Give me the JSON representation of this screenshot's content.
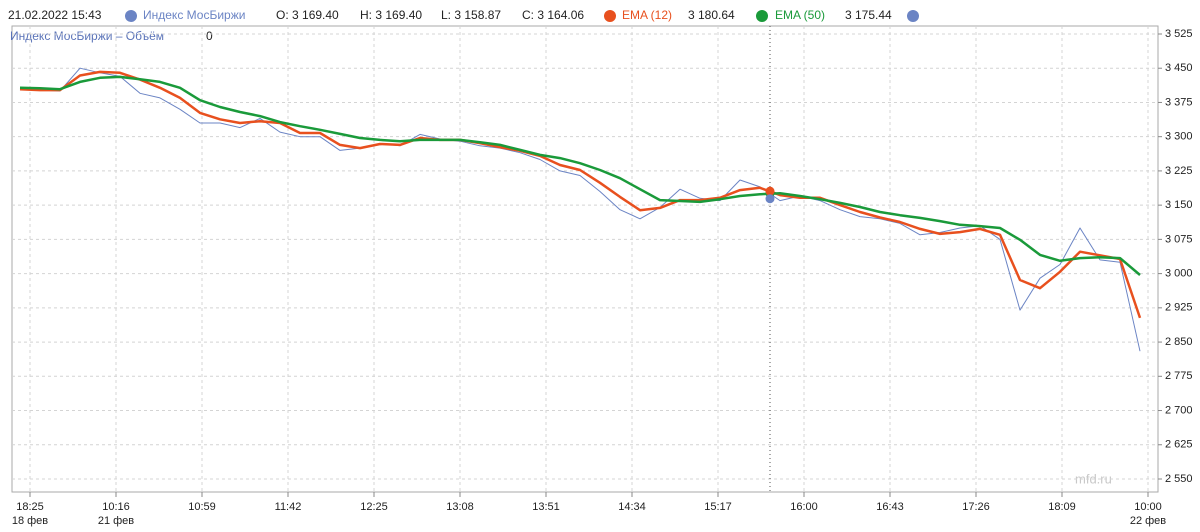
{
  "chart_data": {
    "type": "line",
    "timestamp": "21.02.2022 15:43",
    "volume_legend": {
      "name": "Индекс МосБиржи – Объём",
      "value": 0
    },
    "watermark": "mfd.ru",
    "cursor_x": 370,
    "x": [
      -5,
      5,
      15,
      25,
      35,
      45,
      55,
      65,
      75,
      85,
      95,
      105,
      115,
      125,
      135,
      145,
      155,
      165,
      175,
      185,
      195,
      205,
      215,
      225,
      235,
      245,
      255,
      265,
      275,
      285,
      295,
      305,
      315,
      325,
      335,
      345,
      355,
      365,
      375,
      385,
      395,
      405,
      415,
      425,
      435,
      445,
      455,
      465,
      475,
      485,
      495,
      505,
      515,
      525,
      535,
      545,
      555
    ],
    "series": [
      {
        "name": "Индекс МосБиржи",
        "color": "#6b84c4",
        "width": 1,
        "readout": [
          {
            "prefix": "O:",
            "value": 3169.4,
            "label": "3 169.40"
          },
          {
            "prefix": "H:",
            "value": 3169.4,
            "label": "3 169.40"
          },
          {
            "prefix": "L:",
            "value": 3158.87,
            "label": "3 158.87"
          },
          {
            "prefix": "C:",
            "value": 3164.06,
            "label": "3 164.06"
          }
        ],
        "values": [
          3404,
          3402,
          3400,
          3450,
          3440,
          3432,
          3395,
          3385,
          3360,
          3330,
          3330,
          3320,
          3340,
          3310,
          3300,
          3300,
          3270,
          3275,
          3285,
          3280,
          3305,
          3295,
          3290,
          3280,
          3275,
          3265,
          3250,
          3225,
          3215,
          3180,
          3140,
          3120,
          3145,
          3185,
          3165,
          3160,
          3205,
          3190,
          3160,
          3170,
          3160,
          3140,
          3125,
          3120,
          3110,
          3085,
          3090,
          3100,
          3105,
          3075,
          2920,
          2990,
          3020,
          3100,
          3030,
          3025,
          2830
        ]
      },
      {
        "name": "EMA (12)",
        "color": "#e8501e",
        "width": 2.5,
        "readout": [
          {
            "value": 3180.64,
            "label": "3 180.64"
          }
        ],
        "values": [
          3404,
          3402,
          3402,
          3434,
          3442,
          3440,
          3425,
          3407,
          3385,
          3352,
          3338,
          3330,
          3334,
          3330,
          3308,
          3308,
          3282,
          3275,
          3284,
          3282,
          3297,
          3293,
          3293,
          3286,
          3277,
          3269,
          3258,
          3238,
          3227,
          3199,
          3168,
          3139,
          3144,
          3161,
          3161,
          3166,
          3183,
          3188,
          3172,
          3166,
          3166,
          3150,
          3135,
          3123,
          3113,
          3098,
          3087,
          3091,
          3098,
          3085,
          2986,
          2968,
          3004,
          3048,
          3040,
          3032,
          2903
        ]
      },
      {
        "name": "EMA (50)",
        "color": "#1a9a3a",
        "width": 2.5,
        "readout": [
          {
            "value": 3175.44,
            "label": "3 175.44"
          }
        ],
        "values": [
          3407,
          3406,
          3404,
          3420,
          3429,
          3431,
          3426,
          3420,
          3407,
          3380,
          3365,
          3354,
          3345,
          3332,
          3323,
          3315,
          3306,
          3297,
          3293,
          3290,
          3293,
          3293,
          3293,
          3288,
          3282,
          3271,
          3260,
          3253,
          3242,
          3227,
          3209,
          3185,
          3161,
          3159,
          3157,
          3163,
          3170,
          3174,
          3176,
          3170,
          3163,
          3155,
          3146,
          3135,
          3128,
          3122,
          3115,
          3107,
          3104,
          3100,
          3074,
          3041,
          3028,
          3034,
          3036,
          3034,
          2997
        ]
      }
    ],
    "xlim": [
      -9,
      564
    ],
    "xticks": [
      {
        "value": 0,
        "label": "18:25"
      },
      {
        "value": 43,
        "label": "10:16"
      },
      {
        "value": 86,
        "label": "10:59"
      },
      {
        "value": 129,
        "label": "11:42"
      },
      {
        "value": 172,
        "label": "12:25"
      },
      {
        "value": 215,
        "label": "13:08"
      },
      {
        "value": 258,
        "label": "13:51"
      },
      {
        "value": 301,
        "label": "14:34"
      },
      {
        "value": 344,
        "label": "15:17"
      },
      {
        "value": 387,
        "label": "16:00"
      },
      {
        "value": 430,
        "label": "16:43"
      },
      {
        "value": 473,
        "label": "17:26"
      },
      {
        "value": 516,
        "label": "18:09"
      },
      {
        "value": 559,
        "label": "10:00"
      }
    ],
    "xtick_dates": [
      {
        "value": 0,
        "label": "18 фев"
      },
      {
        "value": 43,
        "label": "21 фев"
      },
      {
        "value": 559,
        "label": "22 фев"
      }
    ],
    "ylim": [
      2521.5,
      3542.5
    ],
    "yticks": [
      {
        "value": 2550,
        "label": "2 550"
      },
      {
        "value": 2625,
        "label": "2 625"
      },
      {
        "value": 2700,
        "label": "2 700"
      },
      {
        "value": 2775,
        "label": "2 775"
      },
      {
        "value": 2850,
        "label": "2 850"
      },
      {
        "value": 2925,
        "label": "2 925"
      },
      {
        "value": 3000,
        "label": "3 000"
      },
      {
        "value": 3075,
        "label": "3 075"
      },
      {
        "value": 3150,
        "label": "3 150"
      },
      {
        "value": 3225,
        "label": "3 225"
      },
      {
        "value": 3300,
        "label": "3 300"
      },
      {
        "value": 3375,
        "label": "3 375"
      },
      {
        "value": 3450,
        "label": "3 450"
      },
      {
        "value": 3525,
        "label": "3 525"
      }
    ],
    "grid": true
  }
}
